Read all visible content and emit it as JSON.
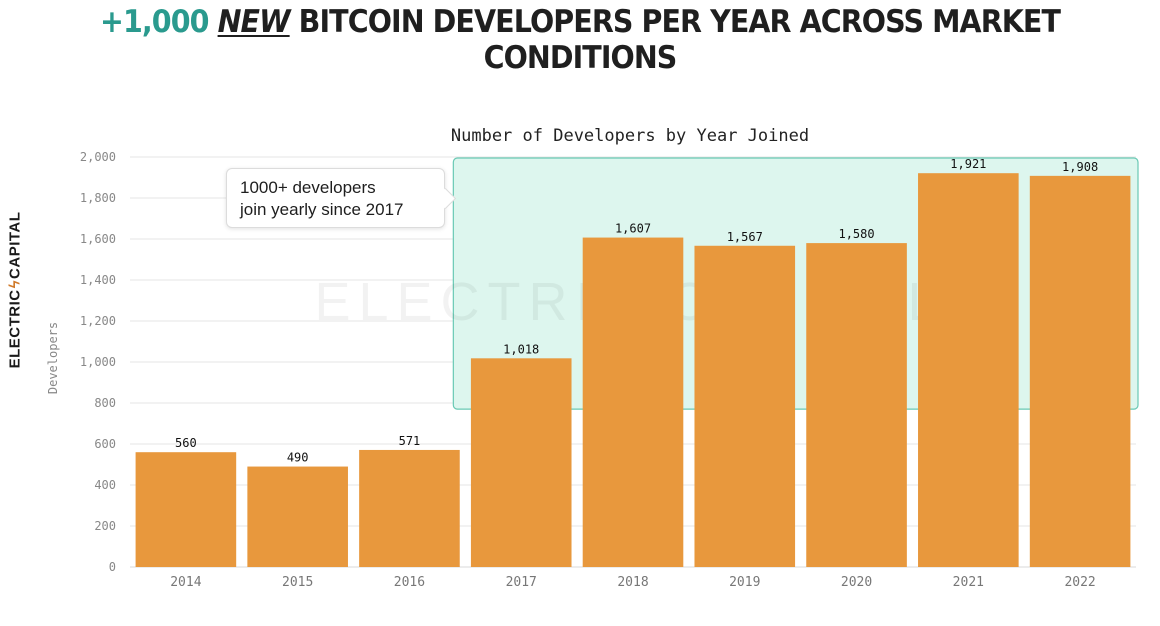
{
  "headline": {
    "accent": "+1,000",
    "emphasis": "NEW",
    "rest": "BITCOIN DEVELOPERS PER YEAR ACROSS MARKET CONDITIONS"
  },
  "brand": {
    "left": "ELECTRIC",
    "right": "CAPITAL",
    "logo_icon": "lightning-bolt-icon",
    "watermark": "ELECTRIC CAPITAL"
  },
  "callout": {
    "line1": "1000+ developers",
    "line2": "join yearly since 2017"
  },
  "colors": {
    "bar": "#E8983D",
    "highlight_fill": "#DDF6EE",
    "highlight_stroke": "#69C9B4",
    "accent": "#2A9A8E"
  },
  "chart_data": {
    "type": "bar",
    "title": "Number of Developers by Year Joined",
    "xlabel": "",
    "ylabel": "Developers",
    "categories": [
      "2014",
      "2015",
      "2016",
      "2017",
      "2018",
      "2019",
      "2020",
      "2021",
      "2022"
    ],
    "values": [
      560,
      490,
      571,
      1018,
      1607,
      1567,
      1580,
      1921,
      1908
    ],
    "value_labels": [
      "560",
      "490",
      "571",
      "1,018",
      "1,607",
      "1,567",
      "1,580",
      "1,921",
      "1,908"
    ],
    "ylim": [
      0,
      2000
    ],
    "yticks": [
      0,
      200,
      400,
      600,
      800,
      1000,
      1200,
      1400,
      1600,
      1800,
      2000
    ],
    "ytick_labels": [
      "0",
      "200",
      "400",
      "600",
      "800",
      "1,000",
      "1,200",
      "1,400",
      "1,600",
      "1,800",
      "2,000"
    ],
    "grid": true,
    "highlight_range": [
      "2017",
      "2022"
    ]
  }
}
